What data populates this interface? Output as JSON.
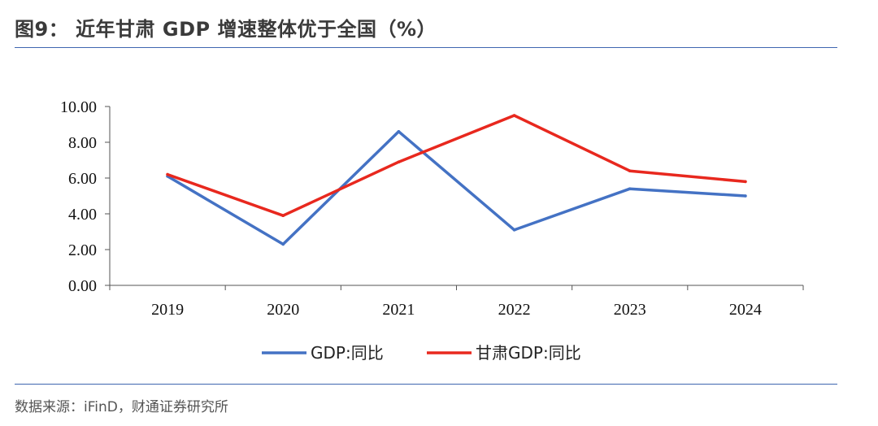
{
  "header": {
    "title": "图9：  近年甘肃 GDP 增速整体优于全国（%）"
  },
  "footer": {
    "source": "数据来源：iFinD，财通证券研究所"
  },
  "chart_data": {
    "type": "line",
    "x": [
      "2019",
      "2020",
      "2021",
      "2022",
      "2023",
      "2024"
    ],
    "series": [
      {
        "name": "GDP:同比",
        "color": "#4472c4",
        "values": [
          6.1,
          2.3,
          8.6,
          3.1,
          5.4,
          5.0
        ]
      },
      {
        "name": "甘肃GDP:同比",
        "color": "#e8281e",
        "values": [
          6.2,
          3.9,
          6.9,
          9.5,
          6.4,
          5.8
        ]
      }
    ],
    "yticks": [
      "0.00",
      "2.00",
      "4.00",
      "6.00",
      "8.00",
      "10.00"
    ],
    "ylim": [
      0,
      10
    ],
    "legend_position": "bottom",
    "grid": false
  }
}
